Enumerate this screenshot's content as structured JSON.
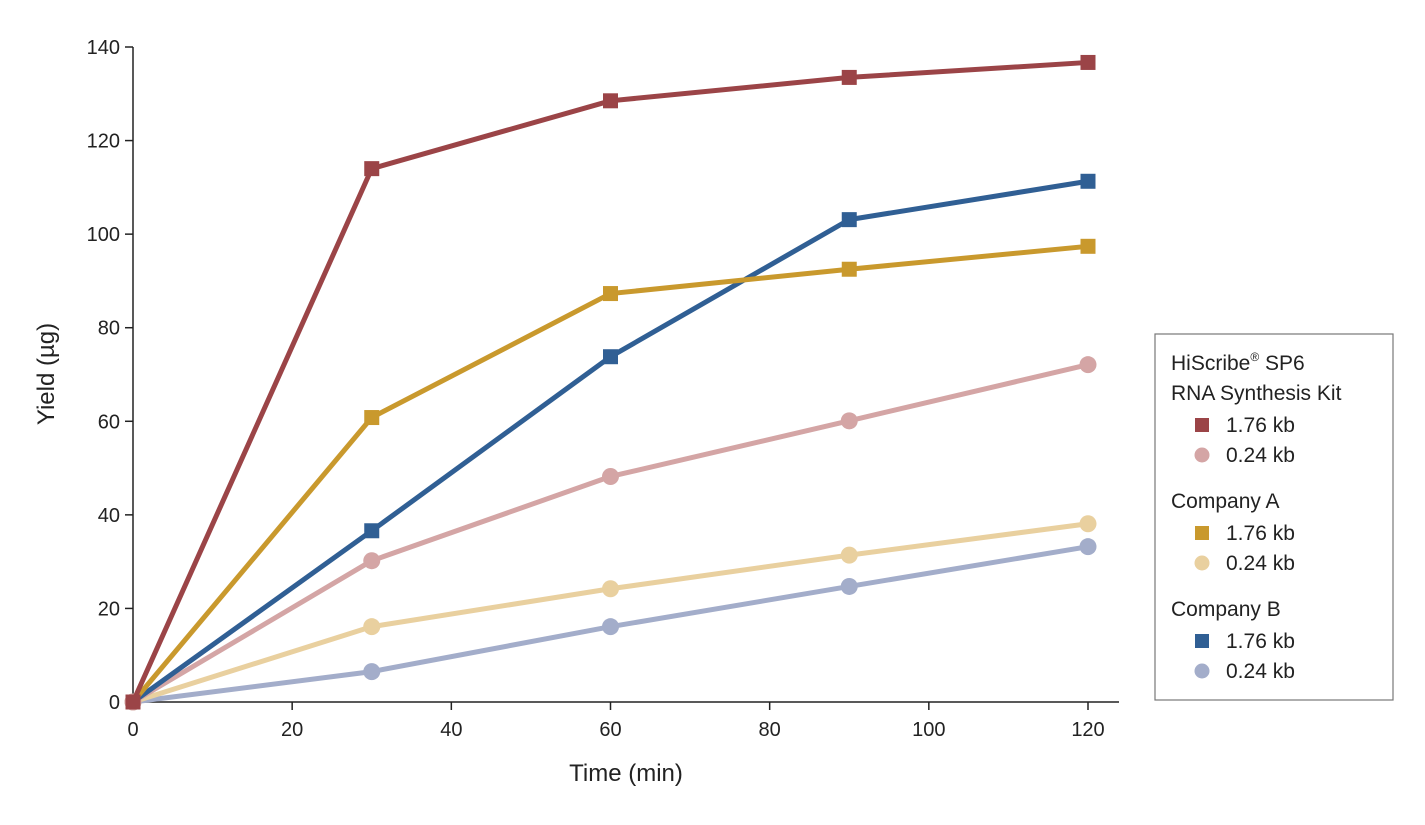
{
  "chart_data": {
    "type": "line",
    "title": "",
    "xlabel": "Time (min)",
    "ylabel": "Yield (µg)",
    "xlim": [
      0,
      120
    ],
    "ylim": [
      0,
      140
    ],
    "xticks": [
      "0",
      "20",
      "40",
      "60",
      "80",
      "100",
      "120"
    ],
    "yticks": [
      "0",
      "20",
      "40",
      "60",
      "80",
      "100",
      "120",
      "140"
    ],
    "x": [
      0,
      30,
      60,
      90,
      120
    ],
    "grid": false,
    "legend_position": "right",
    "legend": {
      "groups": [
        {
          "title_line1": "HiScribe",
          "title_mark": "®",
          "title_line1_rest": " SP6",
          "title_line2": "RNA Synthesis Kit",
          "entries": [
            {
              "label": "1.76 kb",
              "series": 0
            },
            {
              "label": "0.24 kb",
              "series": 1
            }
          ]
        },
        {
          "title_line1": "Company A",
          "entries": [
            {
              "label": "1.76 kb",
              "series": 2
            },
            {
              "label": "0.24 kb",
              "series": 3
            }
          ]
        },
        {
          "title_line1": "Company B",
          "entries": [
            {
              "label": "1.76 kb",
              "series": 4
            },
            {
              "label": "0.24 kb",
              "series": 5
            }
          ]
        }
      ]
    },
    "series": [
      {
        "group": "HiScribe SP6 RNA Synthesis Kit",
        "label": "1.76 kb",
        "marker": "square",
        "color": "#9b4447",
        "values": [
          0,
          114,
          128.5,
          133.5,
          136.7
        ]
      },
      {
        "group": "HiScribe SP6 RNA Synthesis Kit",
        "label": "0.24 kb",
        "marker": "circle",
        "color": "#d4a5a5",
        "values": [
          0,
          30.2,
          48.2,
          60.1,
          72.1
        ]
      },
      {
        "group": "Company A",
        "label": "1.76 kb",
        "marker": "square",
        "color": "#c9992d",
        "values": [
          0,
          60.8,
          87.3,
          92.5,
          97.4
        ]
      },
      {
        "group": "Company A",
        "label": "0.24 kb",
        "marker": "circle",
        "color": "#e9d09f",
        "values": [
          0,
          16.1,
          24.2,
          31.4,
          38.1
        ]
      },
      {
        "group": "Company B",
        "label": "1.76 kb",
        "marker": "square",
        "color": "#305f94",
        "values": [
          0,
          36.6,
          73.8,
          103.1,
          111.3
        ]
      },
      {
        "group": "Company B",
        "label": "0.24 kb",
        "marker": "circle",
        "color": "#a3adca",
        "values": [
          0,
          6.5,
          16.1,
          24.7,
          33.2
        ]
      }
    ]
  }
}
